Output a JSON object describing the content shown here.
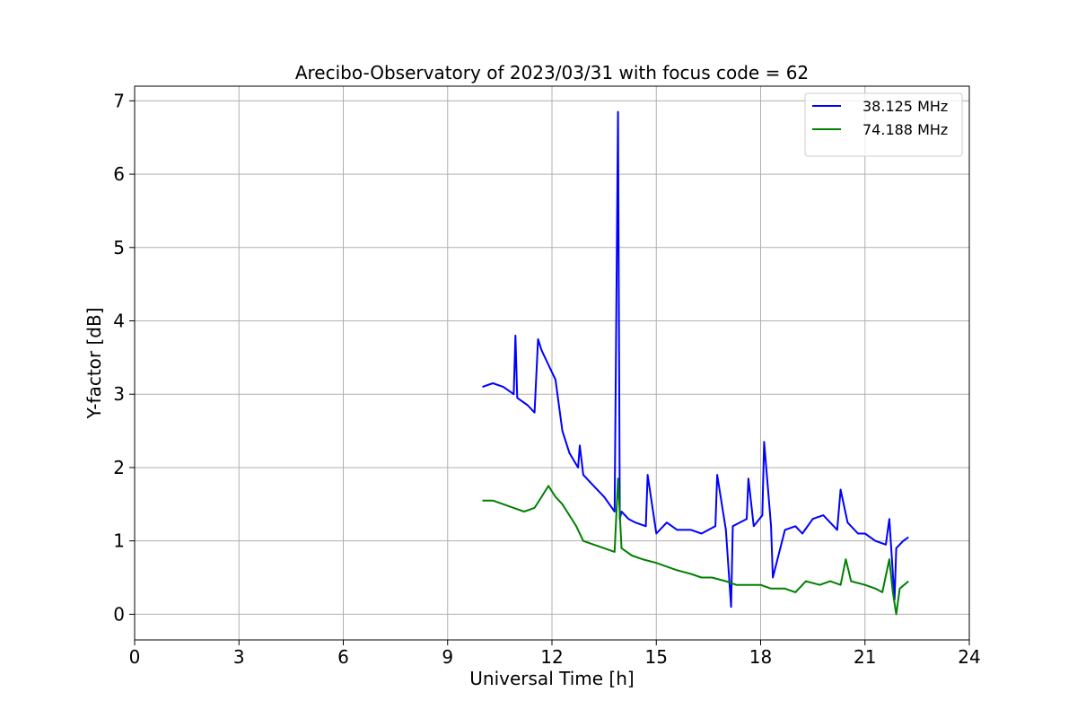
{
  "chart_data": {
    "type": "line",
    "title": "Arecibo-Observatory of 2023/03/31 with focus code = 62",
    "xlabel": "Universal Time [h]",
    "ylabel": "Y-factor [dB]",
    "xlim": [
      0,
      24
    ],
    "ylim": [
      -0.35,
      7.2
    ],
    "xticks": [
      0,
      3,
      6,
      9,
      12,
      15,
      18,
      21,
      24
    ],
    "xtick_labels": [
      "0",
      "3",
      "6",
      "9",
      "12",
      "15",
      "18",
      "21",
      "24"
    ],
    "yticks": [
      0,
      1,
      2,
      3,
      4,
      5,
      6,
      7
    ],
    "ytick_labels": [
      "0",
      "1",
      "2",
      "3",
      "4",
      "5",
      "6",
      "7"
    ],
    "grid": true,
    "legend_position": "top-right",
    "series": [
      {
        "name": "38.125 MHz",
        "color": "#0000ff",
        "x": [
          10.0,
          10.3,
          10.6,
          10.9,
          10.95,
          11.0,
          11.3,
          11.5,
          11.6,
          11.7,
          11.9,
          12.1,
          12.3,
          12.5,
          12.75,
          12.8,
          12.9,
          13.2,
          13.5,
          13.8,
          13.9,
          13.95,
          14.0,
          14.2,
          14.4,
          14.7,
          14.75,
          15.0,
          15.3,
          15.6,
          16.0,
          16.3,
          16.7,
          16.75,
          17.0,
          17.15,
          17.2,
          17.6,
          17.65,
          17.8,
          18.05,
          18.1,
          18.3,
          18.35,
          18.7,
          19.0,
          19.2,
          19.5,
          19.8,
          20.2,
          20.3,
          20.5,
          20.8,
          21.0,
          21.3,
          21.6,
          21.7,
          21.85,
          21.9,
          22.1,
          22.25
        ],
        "values": [
          3.1,
          3.15,
          3.1,
          3.0,
          3.8,
          2.95,
          2.85,
          2.75,
          3.75,
          3.6,
          3.4,
          3.2,
          2.5,
          2.2,
          2.0,
          2.3,
          1.9,
          1.75,
          1.6,
          1.4,
          6.85,
          1.3,
          1.4,
          1.3,
          1.25,
          1.2,
          1.9,
          1.1,
          1.25,
          1.15,
          1.15,
          1.1,
          1.2,
          1.9,
          1.15,
          0.1,
          1.2,
          1.3,
          1.85,
          1.2,
          1.35,
          2.35,
          1.2,
          0.5,
          1.15,
          1.2,
          1.1,
          1.3,
          1.35,
          1.15,
          1.7,
          1.25,
          1.1,
          1.1,
          1.0,
          0.95,
          1.3,
          0.2,
          0.9,
          1.0,
          1.05
        ]
      },
      {
        "name": "74.188 MHz",
        "color": "#008000",
        "x": [
          10.0,
          10.3,
          10.6,
          10.9,
          11.2,
          11.5,
          11.7,
          11.9,
          12.1,
          12.3,
          12.5,
          12.7,
          12.9,
          13.2,
          13.5,
          13.8,
          13.9,
          14.0,
          14.3,
          14.6,
          15.0,
          15.3,
          15.6,
          16.0,
          16.3,
          16.6,
          17.0,
          17.3,
          17.6,
          18.0,
          18.3,
          18.7,
          19.0,
          19.3,
          19.7,
          20.0,
          20.3,
          20.45,
          20.6,
          21.0,
          21.3,
          21.5,
          21.7,
          21.8,
          21.9,
          22.0,
          22.25
        ],
        "values": [
          1.55,
          1.55,
          1.5,
          1.45,
          1.4,
          1.45,
          1.6,
          1.75,
          1.6,
          1.5,
          1.35,
          1.2,
          1.0,
          0.95,
          0.9,
          0.85,
          1.85,
          0.9,
          0.8,
          0.75,
          0.7,
          0.65,
          0.6,
          0.55,
          0.5,
          0.5,
          0.45,
          0.4,
          0.4,
          0.4,
          0.35,
          0.35,
          0.3,
          0.45,
          0.4,
          0.45,
          0.4,
          0.75,
          0.45,
          0.4,
          0.35,
          0.3,
          0.75,
          0.3,
          0.0,
          0.35,
          0.45
        ]
      }
    ]
  }
}
